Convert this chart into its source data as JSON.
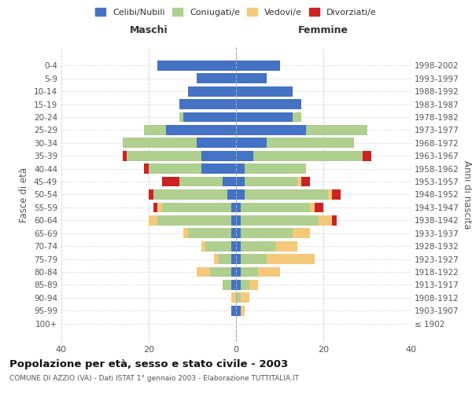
{
  "age_groups": [
    "0-4",
    "5-9",
    "10-14",
    "15-19",
    "20-24",
    "25-29",
    "30-34",
    "35-39",
    "40-44",
    "45-49",
    "50-54",
    "55-59",
    "60-64",
    "65-69",
    "70-74",
    "75-79",
    "80-84",
    "85-89",
    "90-94",
    "95-99",
    "100+"
  ],
  "birth_years": [
    "1998-2002",
    "1993-1997",
    "1988-1992",
    "1983-1987",
    "1978-1982",
    "1973-1977",
    "1968-1972",
    "1963-1967",
    "1958-1962",
    "1953-1957",
    "1948-1952",
    "1943-1947",
    "1938-1942",
    "1933-1937",
    "1928-1932",
    "1923-1927",
    "1918-1922",
    "1913-1917",
    "1908-1912",
    "1903-1907",
    "≤ 1902"
  ],
  "males": {
    "celibi": [
      18,
      9,
      11,
      13,
      12,
      16,
      9,
      8,
      8,
      3,
      2,
      1,
      1,
      1,
      1,
      1,
      1,
      1,
      0,
      1,
      0
    ],
    "coniugati": [
      0,
      0,
      0,
      0,
      1,
      5,
      17,
      17,
      12,
      10,
      17,
      16,
      17,
      10,
      6,
      3,
      5,
      2,
      0,
      0,
      0
    ],
    "vedovi": [
      0,
      0,
      0,
      0,
      0,
      0,
      0,
      0,
      0,
      0,
      0,
      1,
      2,
      1,
      1,
      1,
      3,
      0,
      1,
      0,
      0
    ],
    "divorziati": [
      0,
      0,
      0,
      0,
      0,
      0,
      0,
      1,
      1,
      4,
      1,
      1,
      0,
      0,
      0,
      0,
      0,
      0,
      0,
      0,
      0
    ]
  },
  "females": {
    "nubili": [
      10,
      7,
      13,
      15,
      13,
      16,
      7,
      4,
      2,
      2,
      2,
      1,
      1,
      1,
      1,
      1,
      1,
      1,
      0,
      1,
      0
    ],
    "coniugate": [
      0,
      0,
      0,
      0,
      2,
      14,
      20,
      25,
      14,
      12,
      19,
      16,
      18,
      12,
      8,
      6,
      4,
      2,
      1,
      0,
      0
    ],
    "vedove": [
      0,
      0,
      0,
      0,
      0,
      0,
      0,
      0,
      0,
      1,
      1,
      1,
      3,
      4,
      5,
      11,
      5,
      2,
      2,
      1,
      0
    ],
    "divorziate": [
      0,
      0,
      0,
      0,
      0,
      0,
      0,
      2,
      0,
      2,
      2,
      2,
      1,
      0,
      0,
      0,
      0,
      0,
      0,
      0,
      0
    ]
  },
  "colors": {
    "celibi": "#4472C4",
    "coniugati": "#AECF8E",
    "vedovi": "#F5C97A",
    "divorziati": "#CC2222"
  },
  "xlim": 40,
  "title": "Popolazione per età, sesso e stato civile - 2003",
  "subtitle": "COMUNE DI AZZIO (VA) - Dati ISTAT 1° gennaio 2003 - Elaborazione TUTTITALIA.IT",
  "xlabel_left": "Maschi",
  "xlabel_right": "Femmine",
  "ylabel": "Fasce di età",
  "ylabel_right": "Anni di nascita",
  "legend_labels": [
    "Celibi/Nubili",
    "Coniugati/e",
    "Vedovi/e",
    "Divorziati/e"
  ],
  "background_color": "#ffffff",
  "grid_color": "#cccccc"
}
